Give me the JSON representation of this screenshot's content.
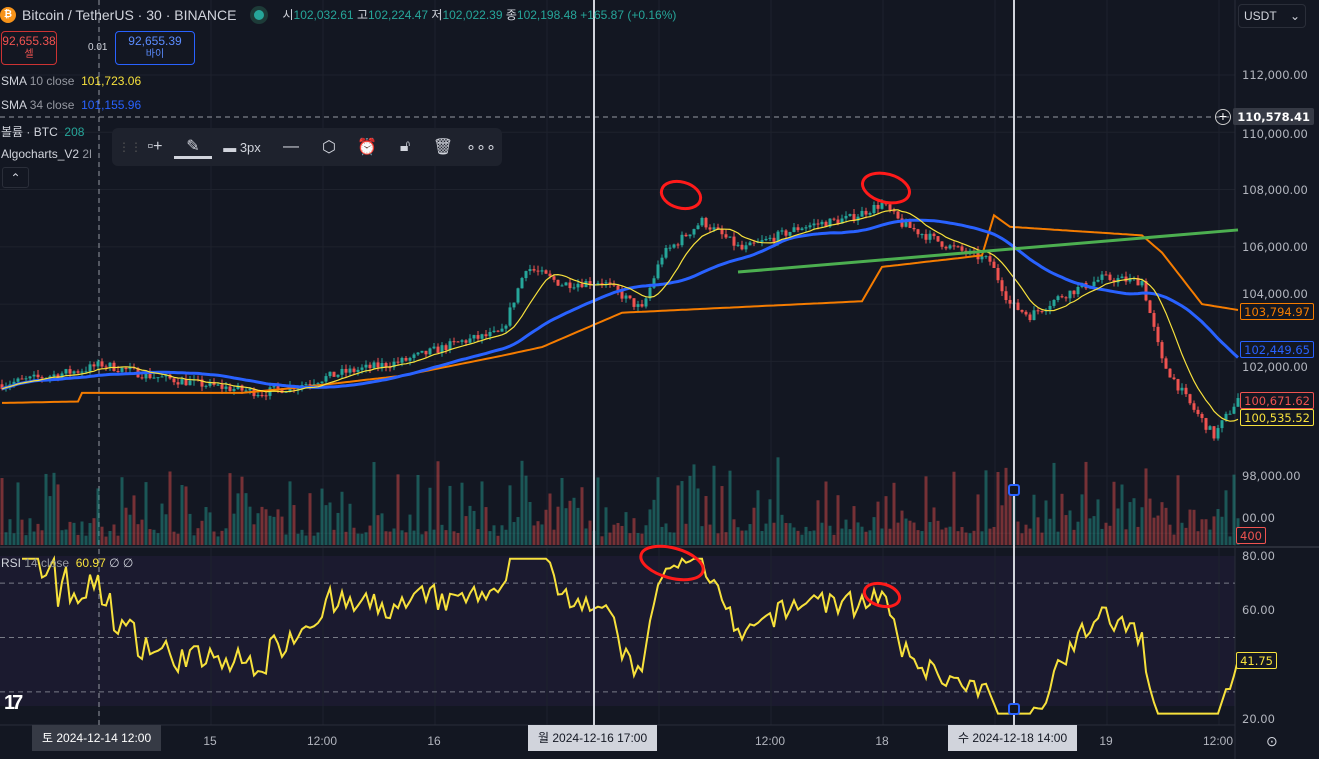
{
  "header": {
    "symbol": "Bitcoin / TetherUS · 30 · BINANCE",
    "open_label": "시",
    "open": "102,032.61",
    "high_label": "고",
    "high": "102,224.47",
    "low_label": "저",
    "low": "102,022.39",
    "close_label": "종",
    "close": "102,198.48",
    "change": "+165.87 (+0.16%)"
  },
  "trade": {
    "sell_price": "92,655.38",
    "sell_label": "셀",
    "spread": "0.01",
    "buy_price": "92,655.39",
    "buy_label": "바이"
  },
  "legend": [
    {
      "name": "SMA",
      "params": "10 close",
      "value": "101,723.06",
      "color": "#f7e13c"
    },
    {
      "name": "SMA",
      "params": "34 close",
      "value": "101,155.96",
      "color": "#2962ff"
    },
    {
      "name": "볼륨 · BTC",
      "params": "",
      "value": "208",
      "color": "#26a69a"
    },
    {
      "name": "Algocharts_V2",
      "params": "",
      "value": "2l",
      "color": "#9598a1"
    }
  ],
  "rsi_legend": {
    "name": "RSI",
    "params": "14 close",
    "value": "60.97",
    "icons": "∅ ∅"
  },
  "toolbar": {
    "width_label": "3px",
    "icons": [
      "add-template-icon",
      "pencil-icon",
      "line-width-icon",
      "line-style-icon",
      "settings-hexagon-icon",
      "alert-icon",
      "unlock-icon",
      "trash-icon",
      "more-icon"
    ]
  },
  "currency": "USDT",
  "price_ticks": [
    "112,000.00",
    "110,000.00",
    "108,000.00",
    "106,000.00",
    "104,000.00",
    "102,000.00",
    "98,000.00",
    "00.00"
  ],
  "price_tick_values": [
    112000,
    110000,
    108000,
    106000,
    104000,
    102000,
    98000,
    96000
  ],
  "rsi_ticks": [
    "80.00",
    "60.00",
    "20.00"
  ],
  "rsi_tick_values": [
    80,
    60,
    20
  ],
  "axis_labels": {
    "crosshair": "110,578.41",
    "orange": "103,794.97",
    "blue": "102,449.65",
    "red": "100,671.62",
    "yellow": "100,535.52",
    "volume": "400",
    "rsi": "41.75"
  },
  "time_ticks": [
    {
      "t": "15",
      "bar": 52
    },
    {
      "t": "12:00",
      "bar": 80
    },
    {
      "t": "16",
      "bar": 108
    },
    {
      "t": "12:00",
      "bar": 192
    },
    {
      "t": "18",
      "bar": 220
    },
    {
      "t": "19",
      "bar": 276
    },
    {
      "t": "12:00",
      "bar": 304
    }
  ],
  "crosshairs": [
    {
      "label": "토 2024-12-14   12:00",
      "bar": 24
    },
    {
      "label": "월 2024-12-16   17:00",
      "bar": 148
    },
    {
      "label": "수 2024-12-18   14:00",
      "bar": 253
    }
  ],
  "colors": {
    "up": "#26a69a",
    "down": "#ef5350",
    "sma10": "#f7e13c",
    "sma34": "#2962ff",
    "band": "#f57c00",
    "trend": "#4caf50",
    "rsi": "#f7e13c",
    "annot": "#ff1a1a"
  },
  "chart_data": {
    "type": "candlestick",
    "price_path": [
      [
        0,
        101200
      ],
      [
        20,
        101700
      ],
      [
        25,
        101900
      ],
      [
        37,
        101500
      ],
      [
        50,
        101200
      ],
      [
        65,
        100900
      ],
      [
        75,
        101200
      ],
      [
        85,
        101600
      ],
      [
        100,
        102000
      ],
      [
        115,
        102700
      ],
      [
        125,
        103000
      ],
      [
        131,
        105300
      ],
      [
        140,
        104700
      ],
      [
        150,
        104800
      ],
      [
        160,
        103800
      ],
      [
        165,
        105700
      ],
      [
        175,
        106900
      ],
      [
        185,
        105900
      ],
      [
        200,
        106700
      ],
      [
        212,
        107000
      ],
      [
        220,
        107500
      ],
      [
        225,
        106800
      ],
      [
        237,
        106000
      ],
      [
        247,
        105500
      ],
      [
        252,
        104000
      ],
      [
        257,
        103600
      ],
      [
        265,
        104300
      ],
      [
        275,
        104900
      ],
      [
        285,
        104800
      ],
      [
        290,
        102000
      ],
      [
        297,
        100500
      ],
      [
        303,
        99400
      ],
      [
        309,
        100700
      ]
    ],
    "band_path": [
      [
        0,
        100550
      ],
      [
        19,
        100600
      ],
      [
        20,
        100900
      ],
      [
        60,
        100900
      ],
      [
        75,
        101100
      ],
      [
        100,
        101500
      ],
      [
        125,
        102200
      ],
      [
        135,
        102500
      ],
      [
        155,
        103700
      ],
      [
        215,
        104100
      ],
      [
        220,
        105300
      ],
      [
        245,
        105700
      ],
      [
        248,
        107100
      ],
      [
        252,
        106700
      ],
      [
        285,
        106400
      ],
      [
        290,
        105800
      ],
      [
        300,
        104000
      ],
      [
        309,
        103795
      ]
    ],
    "trendline": [
      [
        184,
        105120
      ],
      [
        309,
        106590
      ]
    ],
    "rsi_levels": [
      70,
      50,
      30
    ],
    "annotations": [
      "circle",
      "circle",
      "circle",
      "circle"
    ]
  }
}
